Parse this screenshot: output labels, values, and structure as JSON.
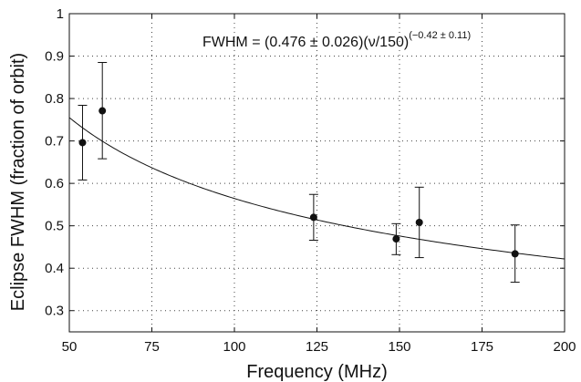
{
  "chart_data": {
    "type": "scatter",
    "xlabel": "Frequency (MHz)",
    "ylabel": "Eclipse FWHM (fraction of orbit)",
    "xlim": [
      50,
      200
    ],
    "ylim": [
      0.25,
      1.0
    ],
    "xticks": [
      50,
      75,
      100,
      125,
      150,
      175,
      200
    ],
    "yticks": [
      0.3,
      0.4,
      0.5,
      0.6,
      0.7,
      0.8,
      0.9,
      1.0
    ],
    "xtick_labels": [
      "50",
      "75",
      "100",
      "125",
      "150",
      "175",
      "200"
    ],
    "ytick_labels": [
      "0.3",
      "0.4",
      "0.5",
      "0.6",
      "0.7",
      "0.8",
      "0.9",
      "1"
    ],
    "grid": true,
    "annotation": {
      "main": "FWHM = (0.476 ± 0.026)(ν/150)",
      "exponent": "(−0.42 ± 0.11)"
    },
    "fit": {
      "amplitude": 0.476,
      "reference_frequency": 150,
      "exponent": -0.42
    },
    "points": [
      {
        "x": 54,
        "y": 0.696,
        "y_low": 0.608,
        "y_high": 0.784
      },
      {
        "x": 60,
        "y": 0.771,
        "y_low": 0.658,
        "y_high": 0.885
      },
      {
        "x": 124,
        "y": 0.52,
        "y_low": 0.466,
        "y_high": 0.574
      },
      {
        "x": 149,
        "y": 0.469,
        "y_low": 0.432,
        "y_high": 0.505
      },
      {
        "x": 156,
        "y": 0.508,
        "y_low": 0.425,
        "y_high": 0.591
      },
      {
        "x": 185,
        "y": 0.434,
        "y_low": 0.367,
        "y_high": 0.502
      }
    ]
  }
}
